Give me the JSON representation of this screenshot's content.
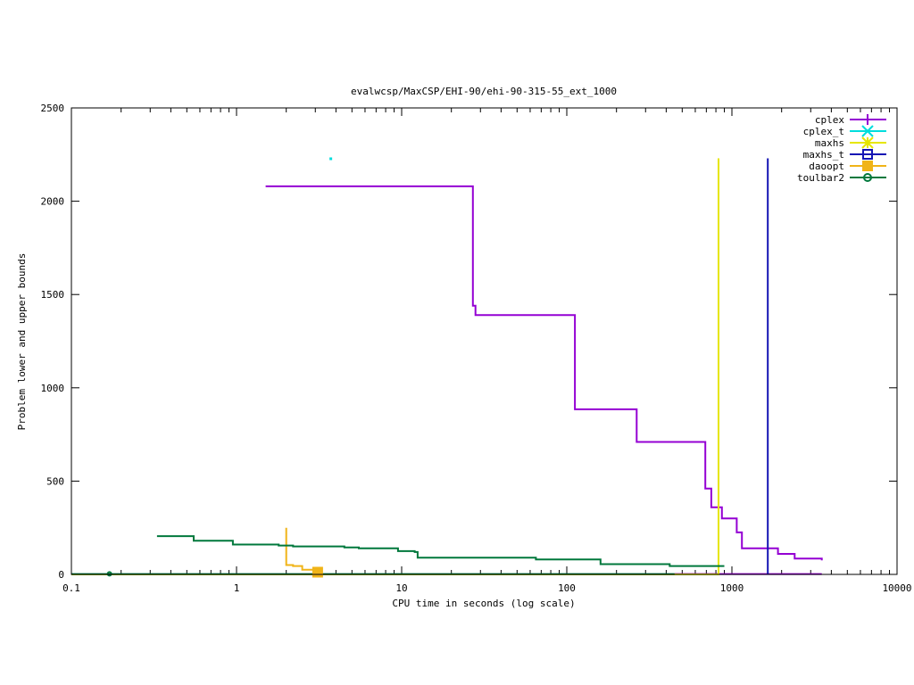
{
  "chart_data": {
    "type": "line",
    "title": "evalwcsp/MaxCSP/EHI-90/ehi-90-315-55_ext_1000",
    "xlabel": "CPU time in seconds (log scale)",
    "ylabel": "Problem lower and upper bounds",
    "xscale": "log",
    "xlim": [
      0.1,
      10000
    ],
    "ylim": [
      0,
      2500
    ],
    "grid": false,
    "legend_position": "top-right",
    "x_ticks": [
      {
        "value": 0.1,
        "label": "0.1"
      },
      {
        "value": 1,
        "label": "1"
      },
      {
        "value": 10,
        "label": "10"
      },
      {
        "value": 100,
        "label": "100"
      },
      {
        "value": 1000,
        "label": "1000"
      },
      {
        "value": 10000,
        "label": "10000"
      }
    ],
    "y_ticks": [
      {
        "value": 0,
        "label": "0"
      },
      {
        "value": 500,
        "label": "500"
      },
      {
        "value": 1000,
        "label": "1000"
      },
      {
        "value": 1500,
        "label": "1500"
      },
      {
        "value": 2000,
        "label": "2000"
      },
      {
        "value": 2500,
        "label": "2500"
      }
    ],
    "series": [
      {
        "name": "cplex",
        "color": "#9400d3",
        "marker": "plus",
        "points": [
          [
            1.5,
            2080
          ],
          [
            27,
            2080
          ],
          [
            27,
            1440
          ],
          [
            28,
            1440
          ],
          [
            28,
            1390
          ],
          [
            112,
            1390
          ],
          [
            112,
            885
          ],
          [
            265,
            885
          ],
          [
            265,
            710
          ],
          [
            690,
            710
          ],
          [
            690,
            460
          ],
          [
            750,
            460
          ],
          [
            750,
            360
          ],
          [
            870,
            360
          ],
          [
            870,
            300
          ],
          [
            1070,
            300
          ],
          [
            1070,
            225
          ],
          [
            1150,
            225
          ],
          [
            1150,
            140
          ],
          [
            1900,
            140
          ],
          [
            1900,
            110
          ],
          [
            2400,
            110
          ],
          [
            2400,
            85
          ],
          [
            3500,
            85
          ],
          [
            3500,
            75
          ]
        ]
      },
      {
        "name": "cplex",
        "color": "#9400d3",
        "marker": "none",
        "points": [
          [
            450,
            2
          ],
          [
            3500,
            2
          ]
        ]
      },
      {
        "name": "cplex_t",
        "color": "#00dddd",
        "marker": "x",
        "points": [
          [
            3.7,
            2230
          ]
        ]
      },
      {
        "name": "maxhs",
        "color": "#e6e600",
        "marker": "star",
        "points": [
          [
            0.1,
            0
          ],
          [
            830,
            0
          ],
          [
            830,
            2230
          ]
        ]
      },
      {
        "name": "maxhs_t",
        "color": "#1414b4",
        "marker": "square",
        "points": [
          [
            1650,
            0
          ],
          [
            1650,
            2230
          ]
        ]
      },
      {
        "name": "daoopt",
        "color": "#f0b418",
        "marker": "filled-square",
        "points": [
          [
            2,
            250
          ],
          [
            2,
            50
          ],
          [
            2.2,
            50
          ],
          [
            2.2,
            45
          ],
          [
            2.5,
            45
          ],
          [
            2.5,
            25
          ],
          [
            3.1,
            25
          ],
          [
            3.1,
            20
          ]
        ]
      },
      {
        "name": "toulbar2",
        "color": "#00783c",
        "marker": "circle",
        "points": [
          [
            0.33,
            205
          ],
          [
            0.55,
            205
          ],
          [
            0.55,
            180
          ],
          [
            0.95,
            180
          ],
          [
            0.95,
            160
          ],
          [
            1.8,
            160
          ],
          [
            1.8,
            155
          ],
          [
            2.2,
            155
          ],
          [
            2.2,
            150
          ],
          [
            4.5,
            150
          ],
          [
            4.5,
            145
          ],
          [
            5.5,
            145
          ],
          [
            5.5,
            140
          ],
          [
            9.5,
            140
          ],
          [
            9.5,
            125
          ],
          [
            12,
            125
          ],
          [
            12,
            120
          ],
          [
            12.5,
            120
          ],
          [
            12.5,
            90
          ],
          [
            65,
            90
          ],
          [
            65,
            80
          ],
          [
            160,
            80
          ],
          [
            160,
            55
          ],
          [
            420,
            55
          ],
          [
            420,
            45
          ],
          [
            900,
            45
          ]
        ]
      },
      {
        "name": "toulbar2",
        "color": "#00783c",
        "marker": "none",
        "points": [
          [
            0.1,
            2
          ],
          [
            450,
            2
          ]
        ]
      }
    ],
    "legend": [
      "cplex",
      "cplex_t",
      "maxhs",
      "maxhs_t",
      "daoopt",
      "toulbar2"
    ],
    "point_markers": [
      {
        "series": "toulbar2",
        "x": 0.17,
        "y": 3
      },
      {
        "series": "daoopt",
        "x": 3.1,
        "y": 12
      }
    ]
  }
}
